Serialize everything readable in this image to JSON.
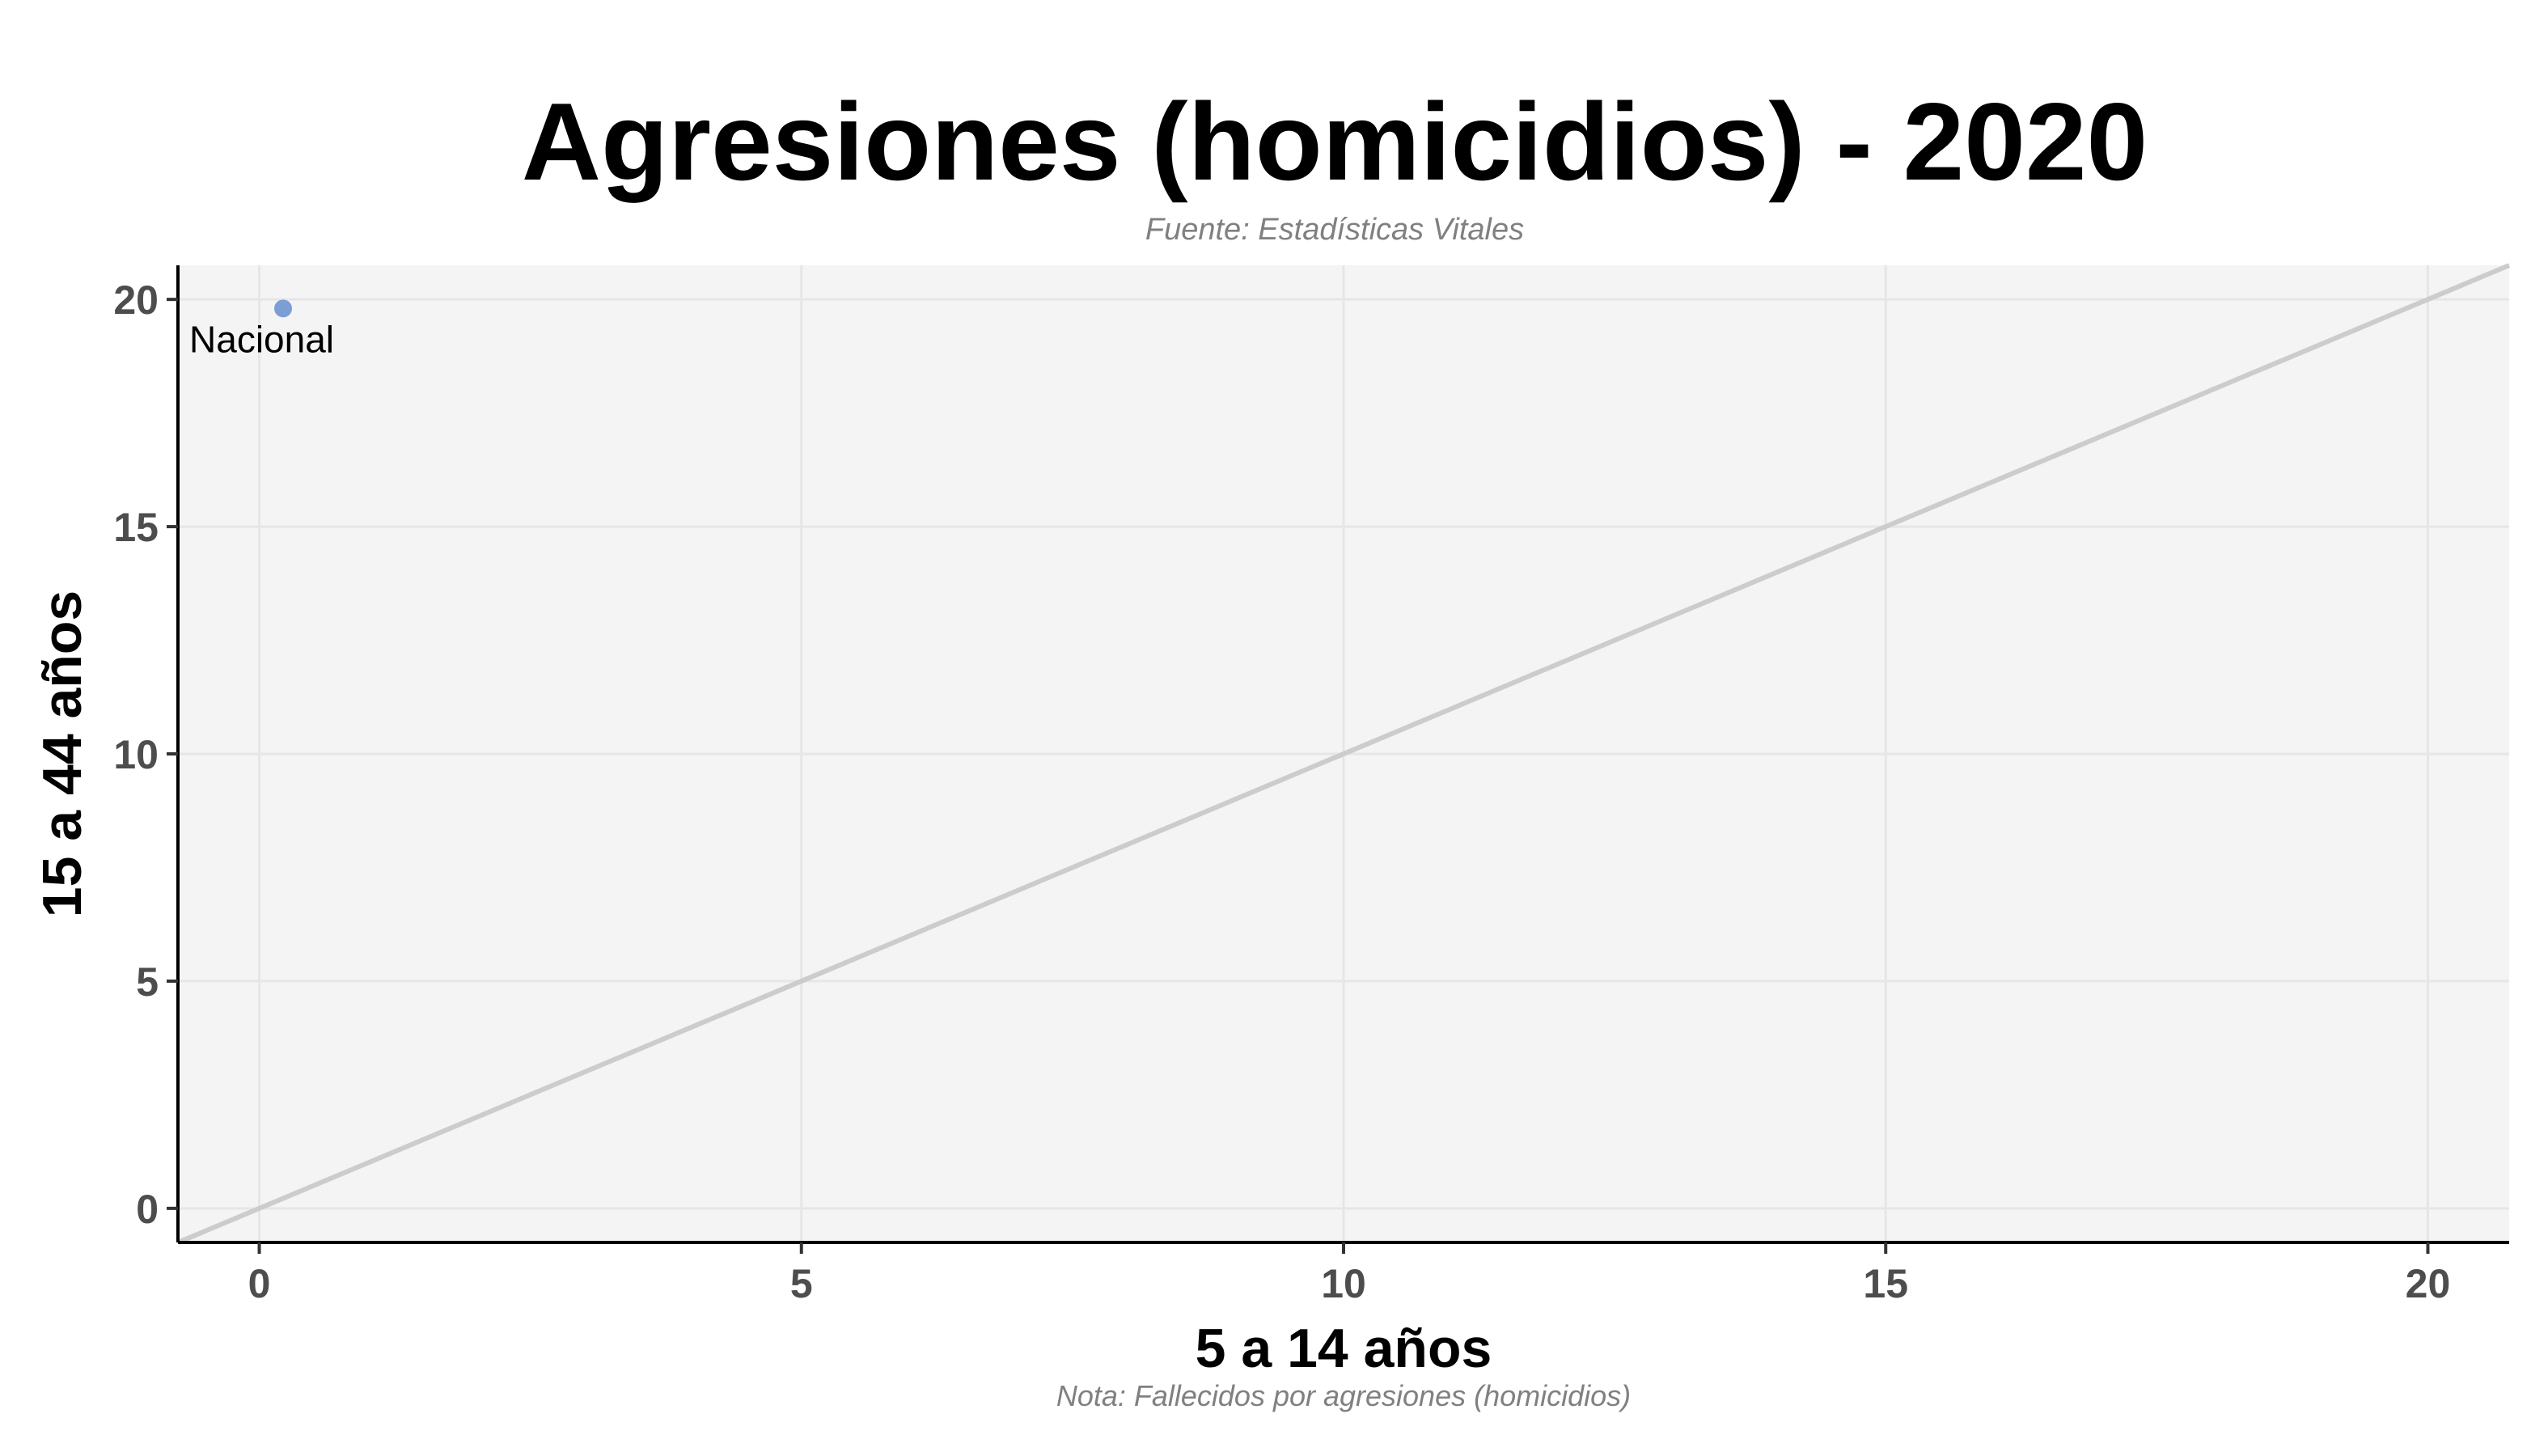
{
  "chart_data": {
    "type": "scatter",
    "title": "Agresiones (homicidios) - 2020",
    "subtitle": "Fuente: Estadísticas Vitales",
    "xlabel": "5 a 14 años",
    "ylabel": "15 a 44 años",
    "caption": "Nota: Fallecidos por agresiones (homicidios)",
    "xlim": [
      -0.75,
      20.75
    ],
    "ylim": [
      -0.75,
      20.75
    ],
    "xticks": [
      0,
      5,
      10,
      15,
      20
    ],
    "yticks": [
      0,
      5,
      10,
      15,
      20
    ],
    "grid": true,
    "reference_line": {
      "type": "identity",
      "from": [
        -0.75,
        -0.75
      ],
      "to": [
        20.75,
        20.75
      ],
      "color": "#cccccc"
    },
    "points": [
      {
        "label": "Nacional",
        "x": 0.22,
        "y": 19.8,
        "color": "#7b9fd4"
      }
    ],
    "colors": {
      "panel": "#f4f4f4",
      "grid": "#e6e6e6",
      "axis": "#000000"
    }
  }
}
